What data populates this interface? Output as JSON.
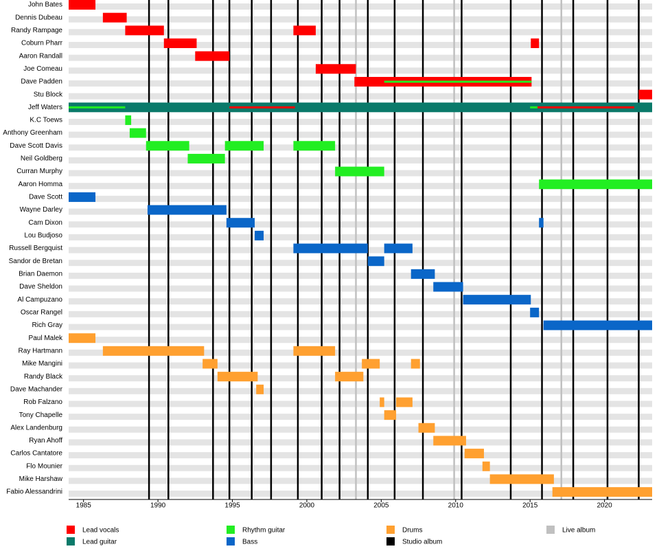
{
  "chart_data": {
    "type": "timeline",
    "categories": [
      "John Bates",
      "Dennis Dubeau",
      "Randy Rampage",
      "Coburn Pharr",
      "Aaron Randall",
      "Joe Comeau",
      "Dave Padden",
      "Stu Block",
      "Jeff Waters",
      "K.C Toews",
      "Anthony Greenham",
      "Dave Scott Davis",
      "Neil Goldberg",
      "Curran Murphy",
      "Aaron Homma",
      "Dave Scott",
      "Wayne Darley",
      "Cam Dixon",
      "Lou Budjoso",
      "Russell Bergquist",
      "Sandor de Bretan",
      "Brian Daemon",
      "Dave Sheldon",
      "Al Campuzano",
      "Oscar Rangel",
      "Rich Gray",
      "Paul Malek",
      "Ray Hartmann",
      "Mike Mangini",
      "Randy Black",
      "Dave Machander",
      "Rob Falzano",
      "Tony Chapelle",
      "Alex Landenburg",
      "Ryan Ahoff",
      "Carlos Cantatore",
      "Flo Mounier",
      "Mike Harshaw",
      "Fabio Alessandrini"
    ],
    "xlim": [
      1984,
      2023.2
    ],
    "xticks": [
      1985,
      1990,
      1995,
      2000,
      2005,
      2010,
      2015,
      2020
    ],
    "series": [
      {
        "name": "Lead vocals",
        "color": "#ff0000",
        "spans": [
          {
            "category": 0,
            "start": 1984,
            "end": 1985.8
          },
          {
            "category": 1,
            "start": 1986.3,
            "end": 1987.9
          },
          {
            "category": 2,
            "start": 1987.8,
            "end": 1990.4
          },
          {
            "category": 2,
            "start": 1999.1,
            "end": 2000.6
          },
          {
            "category": 3,
            "start": 1990.4,
            "end": 1992.6
          },
          {
            "category": 3,
            "start": 2015.05,
            "end": 2015.6
          },
          {
            "category": 4,
            "start": 1992.5,
            "end": 1994.8
          },
          {
            "category": 5,
            "start": 2000.6,
            "end": 2003.3
          },
          {
            "category": 6,
            "start": 2003.2,
            "end": 2015.1
          },
          {
            "category": 7,
            "start": 2022.3,
            "end": 2023.2
          },
          {
            "category": 8,
            "start": 1994.8,
            "end": 1999.2
          },
          {
            "category": 8,
            "start": 2015.5,
            "end": 2022
          }
        ]
      },
      {
        "name": "Lead guitar",
        "color": "#0a7a6a",
        "spans": [
          {
            "category": 8,
            "start": 1984,
            "end": 2023.2
          }
        ]
      },
      {
        "name": "Rhythm guitar",
        "color": "#22ee22",
        "spans": [
          {
            "category": 6,
            "start": 2005.2,
            "end": 2015.1
          },
          {
            "category": 8,
            "start": 1984,
            "end": 1987.8
          },
          {
            "category": 8,
            "start": 2015,
            "end": 2015.5
          },
          {
            "category": 9,
            "start": 1987.8,
            "end": 1988.2
          },
          {
            "category": 10,
            "start": 1988.1,
            "end": 1989.2
          },
          {
            "category": 11,
            "start": 1989.2,
            "end": 1992.1
          },
          {
            "category": 11,
            "start": 1994.5,
            "end": 1997.1
          },
          {
            "category": 11,
            "start": 1999.1,
            "end": 2001.9
          },
          {
            "category": 12,
            "start": 1992.0,
            "end": 1994.5
          },
          {
            "category": 13,
            "start": 2001.9,
            "end": 2005.2
          },
          {
            "category": 14,
            "start": 2015.6,
            "end": 2023.2
          }
        ]
      },
      {
        "name": "Bass",
        "color": "#0a66c8",
        "spans": [
          {
            "category": 15,
            "start": 1984,
            "end": 1985.8
          },
          {
            "category": 16,
            "start": 1989.3,
            "end": 1994.6
          },
          {
            "category": 17,
            "start": 1994.6,
            "end": 1996.5
          },
          {
            "category": 17,
            "start": 2015.6,
            "end": 2015.9
          },
          {
            "category": 18,
            "start": 1996.5,
            "end": 1997.1
          },
          {
            "category": 19,
            "start": 1999.1,
            "end": 2004.1
          },
          {
            "category": 19,
            "start": 2005.2,
            "end": 2007.1
          },
          {
            "category": 20,
            "start": 2004.1,
            "end": 2005.2
          },
          {
            "category": 21,
            "start": 2007.0,
            "end": 2008.6
          },
          {
            "category": 22,
            "start": 2008.5,
            "end": 2010.5
          },
          {
            "category": 23,
            "start": 2010.5,
            "end": 2015.05
          },
          {
            "category": 24,
            "start": 2015.0,
            "end": 2015.6
          },
          {
            "category": 25,
            "start": 2015.9,
            "end": 2023.2
          }
        ]
      },
      {
        "name": "Drums",
        "color": "#ffa030",
        "spans": [
          {
            "category": 26,
            "start": 1984,
            "end": 1985.8
          },
          {
            "category": 27,
            "start": 1986.3,
            "end": 1993.1
          },
          {
            "category": 27,
            "start": 1999.1,
            "end": 2001.9
          },
          {
            "category": 28,
            "start": 1993.0,
            "end": 1994.0
          },
          {
            "category": 28,
            "start": 2003.7,
            "end": 2004.9
          },
          {
            "category": 28,
            "start": 2007.0,
            "end": 2007.6
          },
          {
            "category": 29,
            "start": 1994.0,
            "end": 1996.7
          },
          {
            "category": 29,
            "start": 2001.9,
            "end": 2003.8
          },
          {
            "category": 30,
            "start": 1996.6,
            "end": 1997.1
          },
          {
            "category": 31,
            "start": 2004.9,
            "end": 2005.2
          },
          {
            "category": 31,
            "start": 2006.0,
            "end": 2007.1
          },
          {
            "category": 32,
            "start": 2005.2,
            "end": 2006.0
          },
          {
            "category": 33,
            "start": 2007.5,
            "end": 2008.6
          },
          {
            "category": 34,
            "start": 2008.5,
            "end": 2010.7
          },
          {
            "category": 35,
            "start": 2010.6,
            "end": 2011.9
          },
          {
            "category": 36,
            "start": 2011.8,
            "end": 2012.3
          },
          {
            "category": 37,
            "start": 2012.3,
            "end": 2016.6
          },
          {
            "category": 38,
            "start": 2016.5,
            "end": 2023.2
          }
        ]
      }
    ],
    "markers": [
      {
        "name": "Studio album",
        "color": "#000000",
        "x": [
          1989.4,
          1990.7,
          1993.7,
          1994.8,
          1996.3,
          1997.6,
          1999.4,
          2001.0,
          2002.2,
          2004.1,
          2005.9,
          2007.8,
          2010.4,
          2013.7,
          2015.8,
          2017.9,
          2020.2,
          2022.3
        ]
      },
      {
        "name": "Live album",
        "color": "#c0c0c0",
        "x": [
          2003.3,
          2009.9,
          2017.1
        ]
      }
    ]
  }
}
